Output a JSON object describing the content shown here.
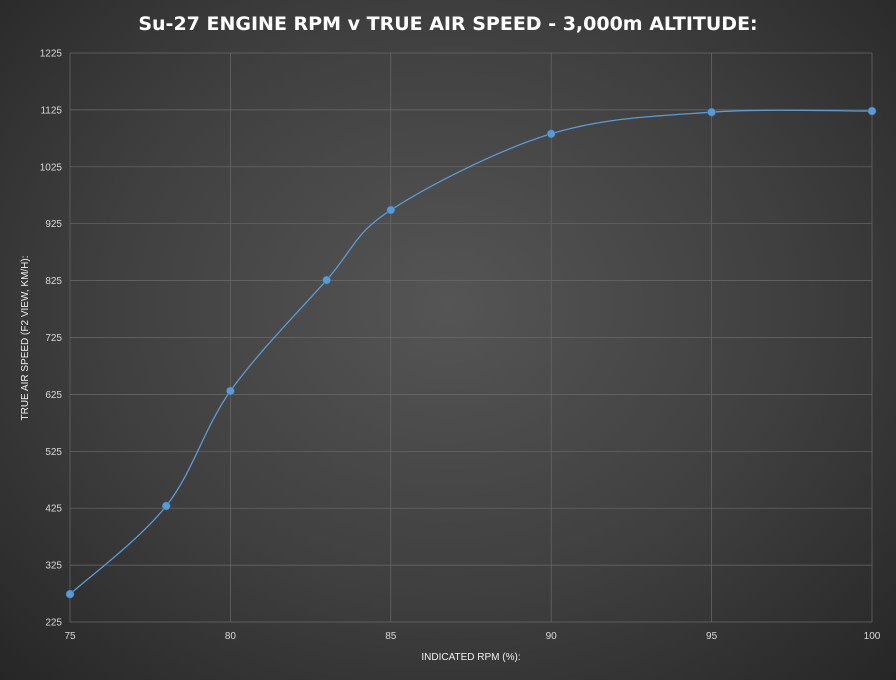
{
  "chart_data": {
    "type": "line",
    "title": "Su-27 ENGINE RPM v TRUE AIR SPEED - 3,000m ALTITUDE:",
    "xlabel": "INDICATED RPM (%):",
    "ylabel": "TRUE AIR SPEED (F2 VIEW, KM/H):",
    "xlim": [
      75,
      100
    ],
    "ylim": [
      225,
      1225
    ],
    "xticks": [
      75,
      80,
      85,
      90,
      95,
      100
    ],
    "yticks": [
      225,
      325,
      425,
      525,
      625,
      725,
      825,
      925,
      1025,
      1125,
      1225
    ],
    "grid": true,
    "smooth": true,
    "series": [
      {
        "x": [
          75,
          78,
          80,
          83,
          85,
          90,
          95,
          100
        ],
        "y": [
          274,
          429,
          631,
          826,
          949,
          1083,
          1121,
          1123
        ],
        "color": "#5b9bd5"
      }
    ]
  }
}
